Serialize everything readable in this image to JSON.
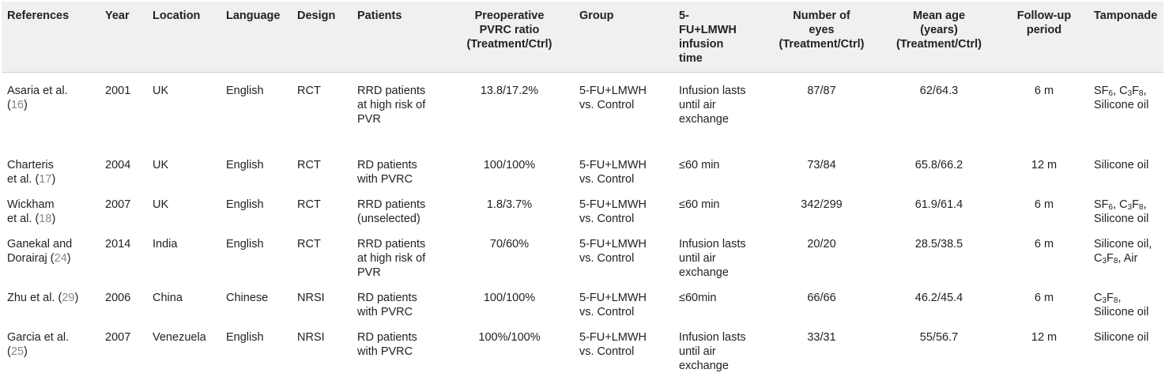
{
  "headers": [
    [
      "References"
    ],
    [
      "Year"
    ],
    [
      "Location"
    ],
    [
      "Language"
    ],
    [
      "Design"
    ],
    [
      "Patients"
    ],
    [
      "Preoperative",
      "PVRC ratio",
      "(Treatment/Ctrl)"
    ],
    [
      "Group"
    ],
    [
      "5-",
      "FU+LMWH",
      "infusion",
      "time"
    ],
    [
      "Number of",
      "eyes",
      "(Treatment/Ctrl)"
    ],
    [
      "Mean age",
      "(years)",
      "(Treatment/Ctrl)"
    ],
    [
      "Follow-up",
      "period"
    ],
    [
      "Tamponade"
    ]
  ],
  "rows": [
    {
      "ref_lines": [
        "Asaria et al.",
        "("
      ],
      "ref_num": "16",
      "ref_close": ")",
      "year": "2001",
      "location": "UK",
      "language": "English",
      "design": "RCT",
      "patients": [
        "RRD patients",
        "at high risk of",
        "PVR"
      ],
      "pvrc": "13.8/17.2%",
      "group": [
        "5-FU+LMWH",
        "vs. Control"
      ],
      "infusion": [
        "Infusion lasts",
        "until air",
        "exchange"
      ],
      "eyes": "87/87",
      "age": "62/64.3",
      "followup": "6 m",
      "tamponade": [
        "SF6, C3F8,",
        "Silicone oil"
      ]
    },
    {
      "ref_lines": [
        "Charteris",
        "et al. ("
      ],
      "ref_num": "17",
      "ref_close": ")",
      "year": "2004",
      "location": "UK",
      "language": "English",
      "design": "RCT",
      "patients": [
        "RD patients",
        "with PVRC"
      ],
      "pvrc": "100/100%",
      "group": [
        "5-FU+LMWH",
        "vs. Control"
      ],
      "infusion": [
        "≤60 min"
      ],
      "eyes": "73/84",
      "age": "65.8/66.2",
      "followup": "12 m",
      "tamponade": [
        "Silicone oil"
      ]
    },
    {
      "ref_lines": [
        "Wickham",
        "et al. ("
      ],
      "ref_num": "18",
      "ref_close": ")",
      "year": "2007",
      "location": "UK",
      "language": "English",
      "design": "RCT",
      "patients": [
        "RRD patients",
        "(unselected)"
      ],
      "pvrc": "1.8/3.7%",
      "group": [
        "5-FU+LMWH",
        "vs. Control"
      ],
      "infusion": [
        "≤60 min"
      ],
      "eyes": "342/299",
      "age": "61.9/61.4",
      "followup": "6 m",
      "tamponade": [
        "SF6, C3F8,",
        "Silicone oil"
      ]
    },
    {
      "ref_lines": [
        "Ganekal and",
        "Dorairaj ("
      ],
      "ref_num": "24",
      "ref_close": ")",
      "year": "2014",
      "location": "India",
      "language": "English",
      "design": "RCT",
      "patients": [
        "RRD patients",
        "at high risk of",
        "PVR"
      ],
      "pvrc": "70/60%",
      "group": [
        "5-FU+LMWH",
        "vs. Control"
      ],
      "infusion": [
        "Infusion lasts",
        "until air",
        "exchange"
      ],
      "eyes": "20/20",
      "age": "28.5/38.5",
      "followup": "6 m",
      "tamponade": [
        "Silicone oil,",
        "C3F8, Air"
      ]
    },
    {
      "ref_lines": [
        "Zhu et al. ("
      ],
      "ref_num": "29",
      "ref_close": ")",
      "year": "2006",
      "location": "China",
      "language": "Chinese",
      "design": "NRSI",
      "patients": [
        "RD patients",
        "with PVRC"
      ],
      "pvrc": "100/100%",
      "group": [
        "5-FU+LMWH",
        "vs. Control"
      ],
      "infusion": [
        "≤60min"
      ],
      "eyes": "66/66",
      "age": "46.2/45.4",
      "followup": "6 m",
      "tamponade": [
        "C3F8,",
        "Silicone oil"
      ]
    },
    {
      "ref_lines": [
        "Garcia et al.",
        "("
      ],
      "ref_num": "25",
      "ref_close": ")",
      "year": "2007",
      "location": "Venezuela",
      "language": "English",
      "design": "NRSI",
      "patients": [
        "RD patients",
        "with PVRC"
      ],
      "pvrc": "100%/100%",
      "group": [
        "5-FU+LMWH",
        "vs. Control"
      ],
      "infusion": [
        "Infusion lasts",
        "until air",
        "exchange"
      ],
      "eyes": "33/31",
      "age": "55/56.7",
      "followup": "12 m",
      "tamponade": [
        "Silicone oil"
      ]
    }
  ]
}
